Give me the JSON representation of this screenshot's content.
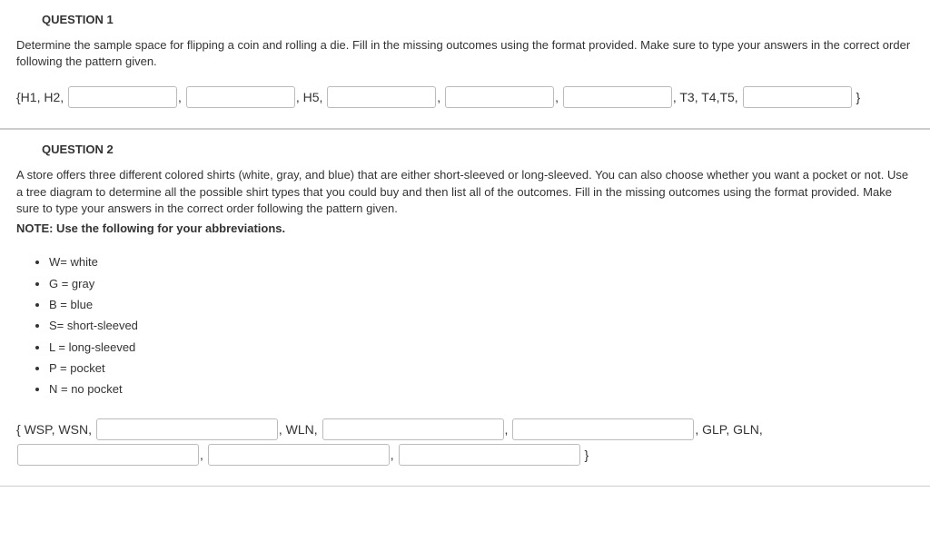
{
  "q1": {
    "header": "QUESTION 1",
    "body": "Determine the sample space for flipping a coin and rolling a die.  Fill in the missing outcomes using the format provided.  Make sure to type your answers in the correct order following the pattern given.",
    "seg_open": "{H1, H2, ",
    "seg_h5": ", H5, ",
    "seg_t345": ", T3, T4,T5, ",
    "seg_comma": ", ",
    "seg_close": " }"
  },
  "q2": {
    "header": "QUESTION 2",
    "body": "A store offers three different colored shirts (white, gray, and blue) that are either short-sleeved or long-sleeved. You can also choose whether you want a pocket or not. Use a tree diagram to determine all the possible shirt types that you could buy and then list all of the outcomes.   Fill in the missing outcomes using the format provided. Make sure to type your answers in the correct order following the pattern given.",
    "note_label": "NOTE: Use the following for your abbreviations.",
    "abbrevs": [
      "W= white",
      "G = gray",
      "B = blue",
      "S= short-sleeved",
      "L = long-sleeved",
      "P = pocket",
      "N = no pocket"
    ],
    "seg_open": "{ WSP, WSN, ",
    "seg_wln": ", WLN, ",
    "seg_glp": ", GLP, GLN, ",
    "seg_comma": ", ",
    "seg_close": " }"
  }
}
